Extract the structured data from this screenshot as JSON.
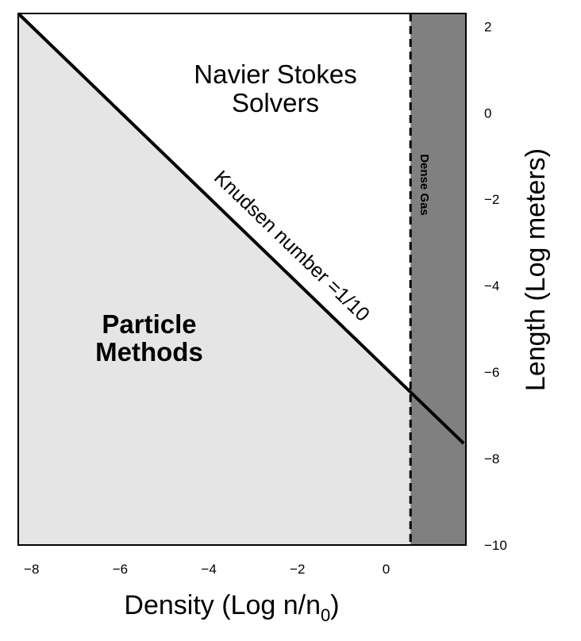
{
  "chart_data": {
    "type": "area",
    "xlabel": "Density (Log n/n",
    "xlabel_subscript": "0",
    "xlabel_close": ")",
    "ylabel": "Length (Log meters)",
    "xlim": [
      -8.3,
      1.8
    ],
    "ylim": [
      -10,
      2.3
    ],
    "x_ticks": [
      -8,
      -6,
      -4,
      -2,
      0
    ],
    "x_tick_labels": [
      "−8",
      "−6",
      "−4",
      "−2",
      "0"
    ],
    "y_ticks": [
      2,
      0,
      -2,
      -4,
      -6,
      -8,
      -10
    ],
    "y_tick_labels": [
      "2",
      "0",
      "−2",
      "−4",
      "−6",
      "−8",
      "−10"
    ],
    "knudsen_line": {
      "label": "Knudsen number =1/10",
      "points": [
        [
          -8.3,
          2.3
        ],
        [
          1.75,
          -7.65
        ]
      ]
    },
    "dense_gas_boundary_x": 0.55,
    "regions": {
      "navier_stokes": {
        "label_line1": "Navier Stokes",
        "label_line2": "Solvers"
      },
      "particle_methods": {
        "label_line1": "Particle",
        "label_line2": "Methods"
      },
      "dense_gas": {
        "label": "Dense Gas"
      }
    },
    "colors": {
      "particle_fill": "#e5e5e5",
      "navier_fill": "#ffffff",
      "dense_fill": "#808080",
      "line": "#000000"
    },
    "grid": false,
    "legend": "none"
  }
}
